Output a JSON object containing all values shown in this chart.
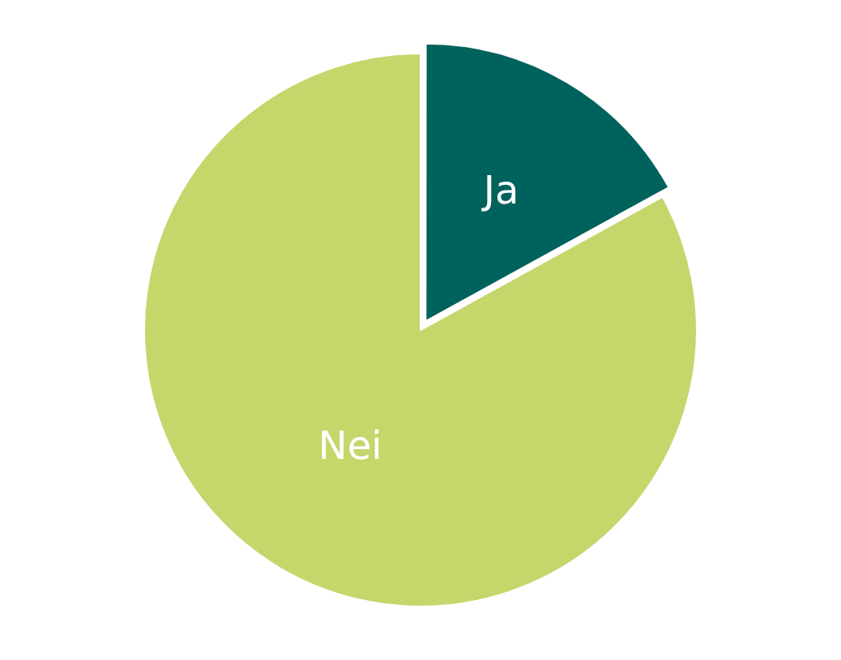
{
  "chart_data": {
    "type": "pie",
    "categories": [
      "Ja",
      "Nei"
    ],
    "values": [
      17,
      83
    ],
    "colors": [
      "#00625c",
      "#c5d66b"
    ],
    "legend": false
  }
}
